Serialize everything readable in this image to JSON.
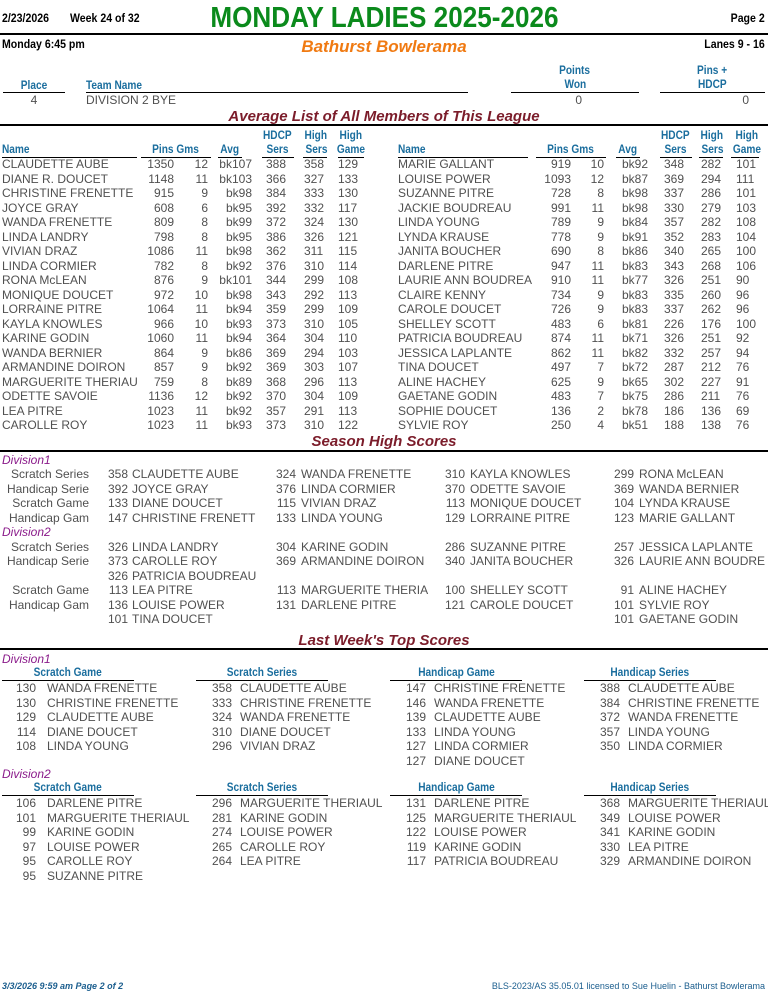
{
  "header": {
    "date": "2/23/2026",
    "week": "Week 24 of 32",
    "title": "MONDAY LADIES 2025-2026",
    "page": "Page 2",
    "day_time": "Monday   6:45 pm",
    "center": "Bathurst Bowlerama",
    "lanes": "Lanes 9 - 16"
  },
  "standings": {
    "headers": {
      "place": "Place",
      "team": "Team Name",
      "points_1": "Points",
      "points_2": "Won",
      "pins_1": "Pins +",
      "pins_2": "HDCP"
    },
    "rows": [
      {
        "place": "4",
        "team": "DIVISION 2 BYE",
        "points": "0",
        "pins": "0"
      }
    ]
  },
  "average_list": {
    "title": "Average List of All Members of This League",
    "headers": {
      "name": "Name",
      "pins_gms": "Pins  Gms",
      "avg": "Avg",
      "hdcp_1": "HDCP",
      "hdcp_2": "Sers",
      "hs_1": "High",
      "hs_2": "Sers",
      "hg_1": "High",
      "hg_2": "Game"
    },
    "left": [
      [
        "CLAUDETTE AUBE",
        "1350",
        "12",
        "bk107",
        "388",
        "358",
        "129"
      ],
      [
        "DIANE R. DOUCET",
        "1148",
        "11",
        "bk103",
        "366",
        "327",
        "133"
      ],
      [
        "CHRISTINE FRENETTE",
        "915",
        "9",
        "bk98",
        "384",
        "333",
        "130"
      ],
      [
        "JOYCE GRAY",
        "608",
        "6",
        "bk95",
        "392",
        "332",
        "117"
      ],
      [
        "WANDA FRENETTE",
        "809",
        "8",
        "bk99",
        "372",
        "324",
        "130"
      ],
      [
        "LINDA LANDRY",
        "798",
        "8",
        "bk95",
        "386",
        "326",
        "121"
      ],
      [
        "VIVIAN DRAZ",
        "1086",
        "11",
        "bk98",
        "362",
        "311",
        "115"
      ],
      [
        "LINDA CORMIER",
        "782",
        "8",
        "bk92",
        "376",
        "310",
        "114"
      ],
      [
        "RONA McLEAN",
        "876",
        "9",
        "bk101",
        "344",
        "299",
        "108"
      ],
      [
        "MONIQUE DOUCET",
        "972",
        "10",
        "bk98",
        "343",
        "292",
        "113"
      ],
      [
        "LORRAINE PITRE",
        "1064",
        "11",
        "bk94",
        "359",
        "299",
        "109"
      ],
      [
        "KAYLA KNOWLES",
        "966",
        "10",
        "bk93",
        "373",
        "310",
        "105"
      ],
      [
        "KARINE GODIN",
        "1060",
        "11",
        "bk94",
        "364",
        "304",
        "110"
      ],
      [
        "WANDA BERNIER",
        "864",
        "9",
        "bk86",
        "369",
        "294",
        "103"
      ],
      [
        "ARMANDINE DOIRON",
        "857",
        "9",
        "bk92",
        "369",
        "303",
        "107"
      ],
      [
        "MARGUERITE THERIAU",
        "759",
        "8",
        "bk89",
        "368",
        "296",
        "113"
      ],
      [
        "ODETTE SAVOIE",
        "1136",
        "12",
        "bk92",
        "370",
        "304",
        "109"
      ],
      [
        "LEA PITRE",
        "1023",
        "11",
        "bk92",
        "357",
        "291",
        "113"
      ],
      [
        "CAROLLE ROY",
        "1023",
        "11",
        "bk93",
        "373",
        "310",
        "122"
      ]
    ],
    "right": [
      [
        "MARIE GALLANT",
        "919",
        "10",
        "bk92",
        "348",
        "282",
        "101"
      ],
      [
        "LOUISE POWER",
        "1093",
        "12",
        "bk87",
        "369",
        "294",
        "111"
      ],
      [
        "SUZANNE PITRE",
        "728",
        "8",
        "bk98",
        "337",
        "286",
        "101"
      ],
      [
        "JACKIE BOUDREAU",
        "991",
        "11",
        "bk98",
        "330",
        "279",
        "103"
      ],
      [
        "LINDA YOUNG",
        "789",
        "9",
        "bk84",
        "357",
        "282",
        "108"
      ],
      [
        "LYNDA KRAUSE",
        "778",
        "9",
        "bk91",
        "352",
        "283",
        "104"
      ],
      [
        "JANITA BOUCHER",
        "690",
        "8",
        "bk86",
        "340",
        "265",
        "100"
      ],
      [
        "DARLENE PITRE",
        "947",
        "11",
        "bk83",
        "343",
        "268",
        "106"
      ],
      [
        "LAURIE ANN BOUDREA",
        "910",
        "11",
        "bk77",
        "326",
        "251",
        "90"
      ],
      [
        "CLAIRE KENNY",
        "734",
        "9",
        "bk83",
        "335",
        "260",
        "96"
      ],
      [
        "CAROLE DOUCET",
        "726",
        "9",
        "bk83",
        "337",
        "262",
        "96"
      ],
      [
        "SHELLEY SCOTT",
        "483",
        "6",
        "bk81",
        "226",
        "176",
        "100"
      ],
      [
        "PATRICIA BOUDREAU",
        "874",
        "11",
        "bk71",
        "326",
        "251",
        "92"
      ],
      [
        "JESSICA LAPLANTE",
        "862",
        "11",
        "bk82",
        "332",
        "257",
        "94"
      ],
      [
        "TINA DOUCET",
        "497",
        "7",
        "bk72",
        "287",
        "212",
        "76"
      ],
      [
        "ALINE HACHEY",
        "625",
        "9",
        "bk65",
        "302",
        "227",
        "91"
      ],
      [
        "GAETANE GODIN",
        "483",
        "7",
        "bk75",
        "286",
        "211",
        "76"
      ],
      [
        "SOPHIE DOUCET",
        "136",
        "2",
        "bk78",
        "186",
        "136",
        "69"
      ],
      [
        "SYLVIE ROY",
        "250",
        "4",
        "bk51",
        "188",
        "138",
        "76"
      ]
    ]
  },
  "season_high": {
    "title": "Season High Scores",
    "rows": [
      {
        "type": "div",
        "label": "Division1"
      },
      {
        "label": "Scratch Series",
        "cells": [
          [
            "358",
            "CLAUDETTE AUBE"
          ],
          [
            "324",
            "WANDA FRENETTE"
          ],
          [
            "310",
            "KAYLA KNOWLES"
          ],
          [
            "299",
            "RONA McLEAN"
          ]
        ]
      },
      {
        "label": "Handicap Serie",
        "cells": [
          [
            "392",
            "JOYCE GRAY"
          ],
          [
            "376",
            "LINDA CORMIER"
          ],
          [
            "370",
            "ODETTE SAVOIE"
          ],
          [
            "369",
            "WANDA BERNIER"
          ]
        ]
      },
      {
        "label": "Scratch Game",
        "cells": [
          [
            "133",
            "DIANE DOUCET"
          ],
          [
            "115",
            "VIVIAN DRAZ"
          ],
          [
            "113",
            "MONIQUE DOUCET"
          ],
          [
            "104",
            "LYNDA KRAUSE"
          ]
        ]
      },
      {
        "label": "Handicap Gam",
        "cells": [
          [
            "147",
            "CHRISTINE FRENETT"
          ],
          [
            "133",
            "LINDA YOUNG"
          ],
          [
            "129",
            "LORRAINE PITRE"
          ],
          [
            "123",
            "MARIE GALLANT"
          ]
        ]
      },
      {
        "type": "div",
        "label": "Division2"
      },
      {
        "label": "Scratch Series",
        "cells": [
          [
            "326",
            "LINDA LANDRY"
          ],
          [
            "304",
            "KARINE GODIN"
          ],
          [
            "286",
            "SUZANNE PITRE"
          ],
          [
            "257",
            "JESSICA LAPLANTE"
          ]
        ]
      },
      {
        "label": "Handicap Serie",
        "cells": [
          [
            "373",
            "CAROLLE ROY"
          ],
          [
            "369",
            "ARMANDINE DOIRON"
          ],
          [
            "340",
            "JANITA BOUCHER"
          ],
          [
            "326",
            "LAURIE ANN BOUDRE"
          ]
        ]
      },
      {
        "label": "",
        "cells": [
          [
            "326",
            "PATRICIA BOUDREAU"
          ],
          null,
          null,
          null
        ]
      },
      {
        "label": "Scratch Game",
        "cells": [
          [
            "113",
            "LEA PITRE"
          ],
          [
            "113",
            "MARGUERITE THERIA"
          ],
          [
            "100",
            "SHELLEY SCOTT"
          ],
          [
            "91",
            "ALINE HACHEY"
          ]
        ]
      },
      {
        "label": "Handicap Gam",
        "cells": [
          [
            "136",
            "LOUISE POWER"
          ],
          [
            "131",
            "DARLENE PITRE"
          ],
          [
            "121",
            "CAROLE DOUCET"
          ],
          [
            "101",
            "SYLVIE ROY"
          ]
        ]
      },
      {
        "label": "",
        "cells": [
          [
            "101",
            "TINA DOUCET"
          ],
          null,
          null,
          [
            "101",
            "GAETANE GODIN"
          ]
        ]
      }
    ]
  },
  "last_week": {
    "title": "Last Week's Top Scores",
    "divisions": [
      {
        "label": "Division1",
        "columns": [
          {
            "header": "Scratch Game",
            "rows": [
              [
                "130",
                "WANDA FRENETTE"
              ],
              [
                "130",
                "CHRISTINE FRENETTE"
              ],
              [
                "129",
                "CLAUDETTE AUBE"
              ],
              [
                "114",
                "DIANE DOUCET"
              ],
              [
                "108",
                "LINDA YOUNG"
              ]
            ]
          },
          {
            "header": "Scratch Series",
            "rows": [
              [
                "358",
                "CLAUDETTE AUBE"
              ],
              [
                "333",
                "CHRISTINE FRENETTE"
              ],
              [
                "324",
                "WANDA FRENETTE"
              ],
              [
                "310",
                "DIANE DOUCET"
              ],
              [
                "296",
                "VIVIAN DRAZ"
              ]
            ]
          },
          {
            "header": "Handicap Game",
            "rows": [
              [
                "147",
                "CHRISTINE FRENETTE"
              ],
              [
                "146",
                "WANDA FRENETTE"
              ],
              [
                "139",
                "CLAUDETTE AUBE"
              ],
              [
                "133",
                "LINDA YOUNG"
              ],
              [
                "127",
                "LINDA CORMIER"
              ],
              [
                "127",
                "DIANE DOUCET"
              ]
            ]
          },
          {
            "header": "Handicap Series",
            "rows": [
              [
                "388",
                "CLAUDETTE AUBE"
              ],
              [
                "384",
                "CHRISTINE FRENETTE"
              ],
              [
                "372",
                "WANDA FRENETTE"
              ],
              [
                "357",
                "LINDA YOUNG"
              ],
              [
                "350",
                "LINDA CORMIER"
              ]
            ]
          }
        ]
      },
      {
        "label": "Division2",
        "columns": [
          {
            "header": "Scratch Game",
            "rows": [
              [
                "106",
                "DARLENE PITRE"
              ],
              [
                "101",
                "MARGUERITE THERIAUL"
              ],
              [
                "99",
                "KARINE GODIN"
              ],
              [
                "97",
                "LOUISE POWER"
              ],
              [
                "95",
                "CAROLLE ROY"
              ],
              [
                "95",
                "SUZANNE PITRE"
              ]
            ]
          },
          {
            "header": "Scratch Series",
            "rows": [
              [
                "296",
                "MARGUERITE THERIAUL"
              ],
              [
                "281",
                "KARINE GODIN"
              ],
              [
                "274",
                "LOUISE POWER"
              ],
              [
                "265",
                "CAROLLE ROY"
              ],
              [
                "264",
                "LEA PITRE"
              ]
            ]
          },
          {
            "header": "Handicap Game",
            "rows": [
              [
                "131",
                "DARLENE PITRE"
              ],
              [
                "125",
                "MARGUERITE THERIAUL"
              ],
              [
                "122",
                "LOUISE POWER"
              ],
              [
                "119",
                "KARINE GODIN"
              ],
              [
                "117",
                "PATRICIA BOUDREAU"
              ]
            ]
          },
          {
            "header": "Handicap Series",
            "rows": [
              [
                "368",
                "MARGUERITE THERIAUL"
              ],
              [
                "349",
                "LOUISE POWER"
              ],
              [
                "341",
                "KARINE GODIN"
              ],
              [
                "330",
                "LEA PITRE"
              ],
              [
                "329",
                "ARMANDINE DOIRON"
              ]
            ]
          }
        ]
      }
    ]
  },
  "footer": {
    "printed": "3/3/2026  9:59 am  Page 2 of 2",
    "license": "BLS-2023/AS 35.05.01 licensed to Sue Huelin - Bathurst Bowlerama"
  },
  "colors": {
    "title": "#0b8a1c",
    "center": "#f07a12",
    "section": "#7b1c2a",
    "column_header": "#1b6e9e",
    "division": "#8a1a8a"
  }
}
